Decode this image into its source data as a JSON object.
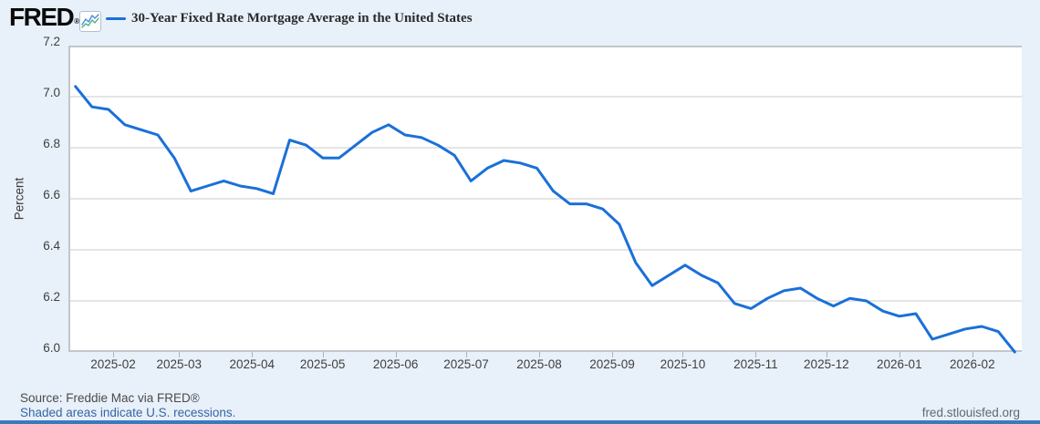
{
  "header": {
    "logo_text": "FRED",
    "registered_mark": "®",
    "legend_label": "30-Year Fixed Rate Mortgage Average in the United States"
  },
  "chart": {
    "ylabel": "Percent",
    "background": "#e8f0f9",
    "plot_background": "#ffffff",
    "grid_color": "#cbcbcb",
    "axis_color": "#c2c6ca",
    "tick_color": "#b3b3b3",
    "line_color": "#1a70d8"
  },
  "chart_data": {
    "type": "line",
    "title": "30-Year Fixed Rate Mortgage Average in the United States",
    "ylabel": "Percent",
    "xlabel": "",
    "legend_position": "top",
    "grid": true,
    "ylim": [
      6.0,
      7.2
    ],
    "y_ticks": [
      7.2,
      7.0,
      6.8,
      6.6,
      6.4,
      6.2,
      6.0
    ],
    "x_tick_labels": [
      "2025-02",
      "2025-03",
      "2025-04",
      "2025-05",
      "2025-06",
      "2025-07",
      "2025-08",
      "2025-09",
      "2025-10",
      "2025-11",
      "2025-12",
      "2026-01",
      "2026-02"
    ],
    "x_domain": [
      "2025-01-13",
      "2026-02-22"
    ],
    "series": [
      {
        "name": "30-Year Fixed Rate Mortgage Average in the United States",
        "x": [
          "2025-01-16",
          "2025-01-23",
          "2025-01-30",
          "2025-02-06",
          "2025-02-13",
          "2025-02-20",
          "2025-02-27",
          "2025-03-06",
          "2025-03-13",
          "2025-03-20",
          "2025-03-27",
          "2025-04-03",
          "2025-04-10",
          "2025-04-17",
          "2025-04-24",
          "2025-05-01",
          "2025-05-08",
          "2025-05-15",
          "2025-05-22",
          "2025-05-29",
          "2025-06-05",
          "2025-06-12",
          "2025-06-19",
          "2025-06-26",
          "2025-07-03",
          "2025-07-10",
          "2025-07-17",
          "2025-07-24",
          "2025-07-31",
          "2025-08-07",
          "2025-08-14",
          "2025-08-21",
          "2025-08-28",
          "2025-09-04",
          "2025-09-11",
          "2025-09-18",
          "2025-09-25",
          "2025-10-02",
          "2025-10-09",
          "2025-10-16",
          "2025-10-23",
          "2025-10-30",
          "2025-11-06",
          "2025-11-13",
          "2025-11-20",
          "2025-11-27",
          "2025-12-04",
          "2025-12-11",
          "2025-12-18",
          "2025-12-25",
          "2026-01-01",
          "2026-01-08",
          "2026-01-15",
          "2026-01-22",
          "2026-01-29",
          "2026-02-05",
          "2026-02-12",
          "2026-02-19"
        ],
        "values": [
          7.04,
          6.96,
          6.95,
          6.89,
          6.87,
          6.85,
          6.76,
          6.63,
          6.65,
          6.67,
          6.65,
          6.64,
          6.62,
          6.83,
          6.81,
          6.76,
          6.76,
          6.81,
          6.86,
          6.89,
          6.85,
          6.84,
          6.81,
          6.77,
          6.67,
          6.72,
          6.75,
          6.74,
          6.72,
          6.63,
          6.58,
          6.58,
          6.56,
          6.5,
          6.35,
          6.26,
          6.3,
          6.34,
          6.3,
          6.27,
          6.19,
          6.17,
          6.21,
          6.24,
          6.25,
          6.21,
          6.18,
          6.21,
          6.2,
          6.16,
          6.14,
          6.15,
          6.05,
          6.07,
          6.09,
          6.1,
          6.08,
          6.0
        ]
      }
    ]
  },
  "footer": {
    "source": "Source: Freddie Mac via FRED®",
    "recession_note": "Shaded areas indicate U.S. recessions.",
    "site": "fred.stlouisfed.org"
  }
}
